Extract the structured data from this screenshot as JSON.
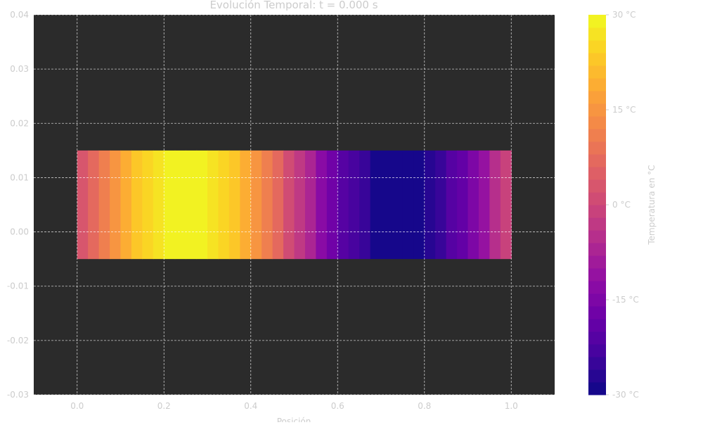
{
  "chart_data": {
    "type": "heatmap",
    "title": "Evolución Temporal: t = 0.000 s",
    "xlabel": "Posición",
    "ylabel": "",
    "xlim": [
      -0.1,
      1.1
    ],
    "ylim": [
      -0.03,
      0.04
    ],
    "x_ticks": [
      0.0,
      0.2,
      0.4,
      0.6,
      0.8,
      1.0
    ],
    "x_tick_labels": [
      "0.0",
      "0.2",
      "0.4",
      "0.6",
      "0.8",
      "1.0"
    ],
    "y_ticks": [
      0.04,
      0.03,
      0.02,
      0.01,
      0.0,
      -0.01,
      -0.02,
      -0.03
    ],
    "y_tick_labels": [
      "0.04",
      "0.03",
      "0.02",
      "0.01",
      "0.00",
      "-0.01",
      "-0.02",
      "-0.03"
    ],
    "grid": true,
    "bar": {
      "x_start": 0.0,
      "x_end": 1.0,
      "y_bottom": -0.005,
      "y_top": 0.015
    },
    "x": [
      0.0,
      0.025,
      0.05,
      0.075,
      0.1,
      0.125,
      0.15,
      0.175,
      0.2,
      0.225,
      0.25,
      0.275,
      0.3,
      0.325,
      0.35,
      0.375,
      0.4,
      0.425,
      0.45,
      0.475,
      0.5,
      0.525,
      0.55,
      0.575,
      0.6,
      0.625,
      0.65,
      0.675,
      0.7,
      0.725,
      0.75,
      0.775,
      0.8,
      0.825,
      0.85,
      0.875,
      0.9,
      0.925,
      0.95,
      0.975
    ],
    "values": [
      2.4,
      7.1,
      11.7,
      15.9,
      19.8,
      23.1,
      25.9,
      27.9,
      29.3,
      29.9,
      29.8,
      28.9,
      27.3,
      25.1,
      22.2,
      18.9,
      15.0,
      10.8,
      6.3,
      1.6,
      -3.2,
      -7.8,
      -12.2,
      -16.3,
      -20.1,
      -23.4,
      -26.0,
      -28.1,
      -29.4,
      -30.0,
      -29.8,
      -28.8,
      -27.2,
      -24.8,
      -21.9,
      -18.5,
      -14.6,
      -10.3,
      -5.8,
      -1.1
    ],
    "colorbar": {
      "label": "Temperatura en °C",
      "min": -30,
      "max": 30,
      "levels": 30,
      "ticks": [
        30,
        15,
        0,
        -15,
        -30
      ],
      "tick_labels": [
        "30 °C",
        "15 °C",
        "0 °C",
        "-15 °C",
        "-30 °C"
      ],
      "colormap": "plasma"
    },
    "colors": {
      "plot_background": "#2b2b2b",
      "grid": "#ffffff",
      "text": "#cccccc"
    }
  }
}
